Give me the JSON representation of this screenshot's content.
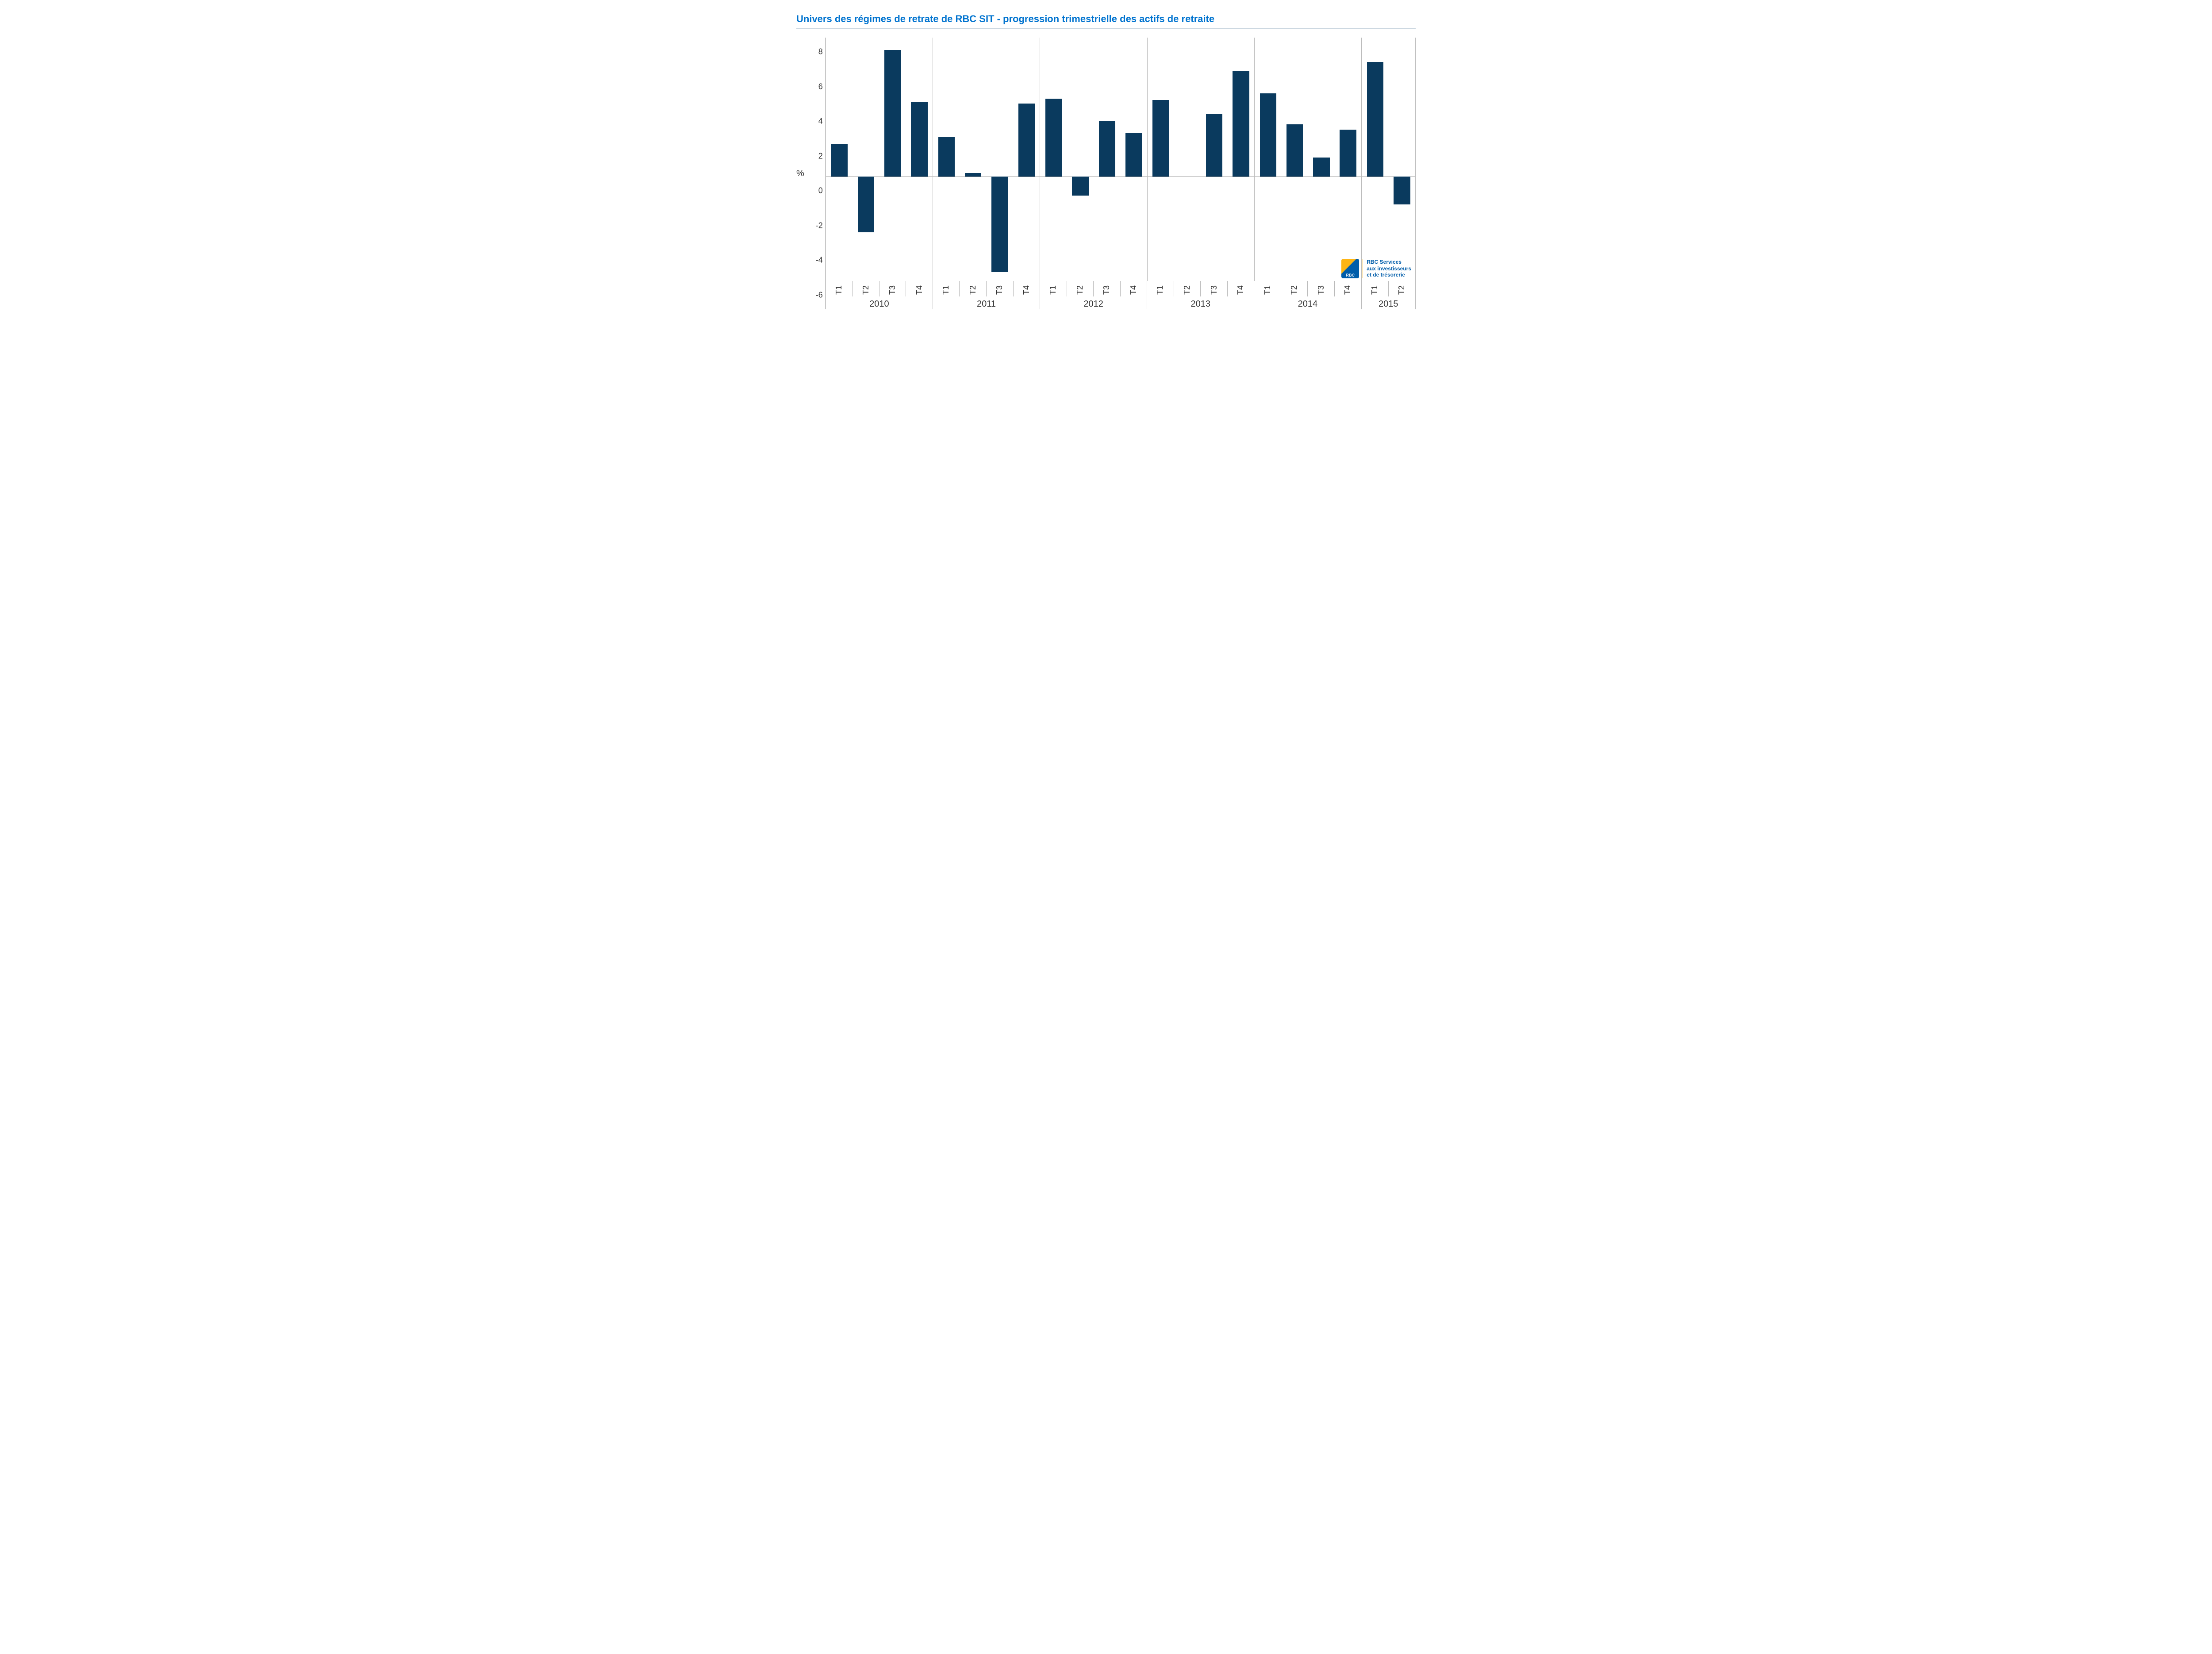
{
  "chart": {
    "type": "bar",
    "title": "Univers des régimes de retrate de RBC SIT - progression trimestrielle des actifs de retraite",
    "title_color": "#0073cf",
    "title_fontsize": 22,
    "background_color": "#ffffff",
    "bar_color": "#0a3a5e",
    "axis_color": "#888888",
    "group_divider_color": "#bbbbbb",
    "tick_label_color": "#333333",
    "tick_fontsize": 18,
    "y_axis": {
      "title": "%",
      "min": -6,
      "max": 8,
      "tick_step": 2,
      "ticks": [
        8,
        6,
        4,
        2,
        0,
        -2,
        -4,
        -6
      ]
    },
    "bar_width_ratio": 0.62,
    "groups": [
      {
        "year": "2010",
        "quarters": [
          {
            "label": "T1",
            "value": 1.9
          },
          {
            "label": "T2",
            "value": -3.2
          },
          {
            "label": "T3",
            "value": 7.3
          },
          {
            "label": "T4",
            "value": 4.3
          }
        ]
      },
      {
        "year": "2011",
        "quarters": [
          {
            "label": "T1",
            "value": 2.3
          },
          {
            "label": "T2",
            "value": 0.2
          },
          {
            "label": "T3",
            "value": -5.5
          },
          {
            "label": "T4",
            "value": 4.2
          }
        ]
      },
      {
        "year": "2012",
        "quarters": [
          {
            "label": "T1",
            "value": 4.5
          },
          {
            "label": "T2",
            "value": -1.1
          },
          {
            "label": "T3",
            "value": 3.2
          },
          {
            "label": "T4",
            "value": 2.5
          }
        ]
      },
      {
        "year": "2013",
        "quarters": [
          {
            "label": "T1",
            "value": 4.4
          },
          {
            "label": "T2",
            "value": 0.0
          },
          {
            "label": "T3",
            "value": 3.6
          },
          {
            "label": "T4",
            "value": 6.1
          }
        ]
      },
      {
        "year": "2014",
        "quarters": [
          {
            "label": "T1",
            "value": 4.8
          },
          {
            "label": "T2",
            "value": 3.0
          },
          {
            "label": "T3",
            "value": 1.1
          },
          {
            "label": "T4",
            "value": 2.7
          }
        ]
      },
      {
        "year": "2015",
        "quarters": [
          {
            "label": "T1",
            "value": 6.6
          },
          {
            "label": "T2",
            "value": -1.6
          }
        ]
      }
    ]
  },
  "logo": {
    "icon_text": "RBC",
    "text_line1": "RBC Services",
    "text_line2": "aux investisseurs",
    "text_line3": "et de trésorerie",
    "primary_color": "#005daa",
    "accent_color": "#fdb515"
  }
}
